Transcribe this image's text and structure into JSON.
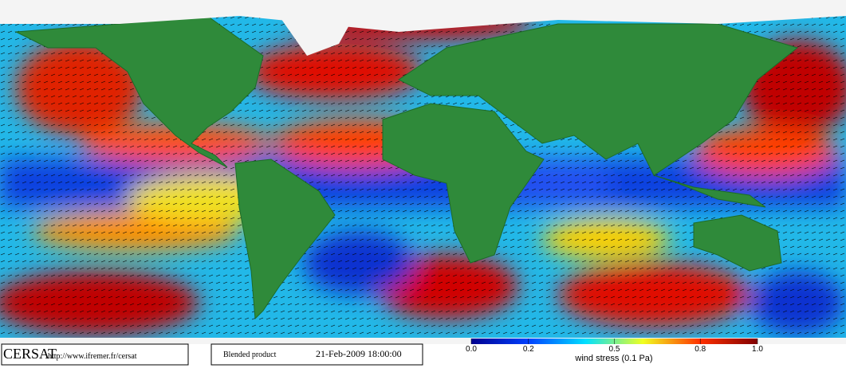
{
  "footer": {
    "logo": "CERSAT",
    "url": "http://www.ifremer.fr/cersat",
    "product": "Blended product",
    "date": "21-Feb-2009 18:00:00"
  },
  "colorbar": {
    "ticks": [
      {
        "value": 0,
        "label": "0.0"
      },
      0.2,
      0.5,
      0.8,
      {
        "value": 1,
        "label": "1.0"
      }
    ],
    "label": "wind stress (0.1 Pa)"
  }
}
